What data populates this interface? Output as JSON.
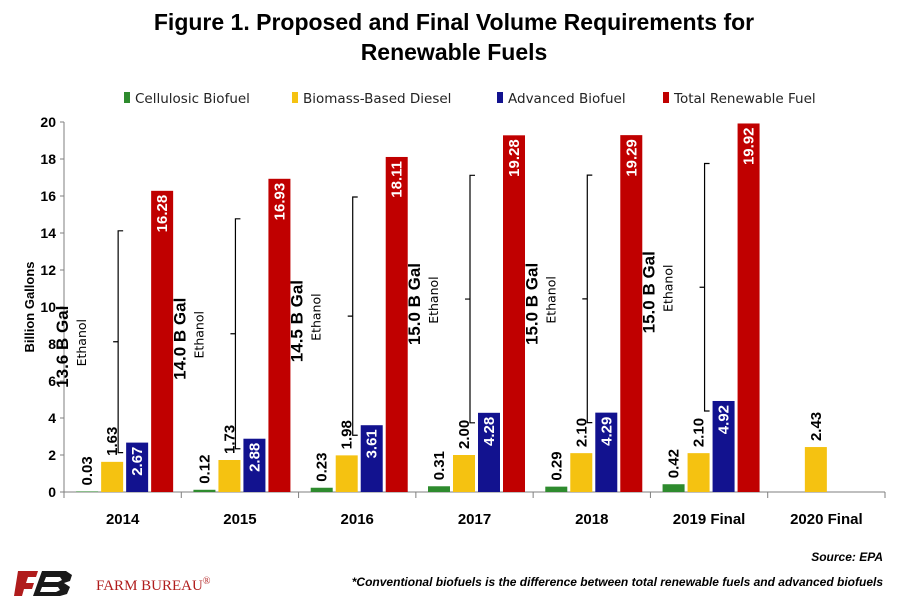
{
  "title_line1": "Figure 1. Proposed and Final Volume Requirements for",
  "title_line2": "Renewable Fuels",
  "source": "Source: EPA",
  "footnote": "*Conventional biofuels is the difference between total renewable fuels and advanced biofuels",
  "logo": {
    "text": "FARM BUREAU",
    "mark": "®",
    "color": "#b01c1c"
  },
  "chart_data": {
    "type": "bar",
    "title": "Figure 1. Proposed and Final Volume Requirements for Renewable Fuels",
    "ylabel": "Billion Gallons",
    "xlabel": "",
    "ylim": [
      0,
      20
    ],
    "yticks": [
      0,
      2,
      4,
      6,
      8,
      10,
      12,
      14,
      16,
      18,
      20
    ],
    "grid": false,
    "legend_position": "top",
    "categories": [
      "2014",
      "2015",
      "2016",
      "2017",
      "2018",
      "2019 Final",
      "2020 Final"
    ],
    "series": [
      {
        "name": "Cellulosic Biofuel",
        "color": "#2e8b2e",
        "label_color": "#000000",
        "values": [
          0.03,
          0.12,
          0.23,
          0.31,
          0.29,
          0.42,
          null
        ],
        "labels": [
          "0.03",
          "0.12",
          "0.23",
          "0.31",
          "0.29",
          "0.42",
          ""
        ]
      },
      {
        "name": "Biomass-Based Diesel",
        "color": "#f5c211",
        "label_color": "#000000",
        "values": [
          1.63,
          1.73,
          1.98,
          2.0,
          2.1,
          2.1,
          2.43
        ],
        "labels": [
          "1.63",
          "1.73",
          "1.98",
          "2.00",
          "2.10",
          "2.10",
          "2.43"
        ]
      },
      {
        "name": "Advanced Biofuel",
        "color": "#12128f",
        "label_color": "#ffffff",
        "values": [
          2.67,
          2.88,
          3.61,
          4.28,
          4.29,
          4.92,
          null
        ],
        "labels": [
          "2.67",
          "2.88",
          "3.61",
          "4.28",
          "4.29",
          "4.92",
          ""
        ]
      },
      {
        "name": "Total Renewable Fuel",
        "color": "#c00000",
        "label_color": "#ffffff",
        "values": [
          16.28,
          16.93,
          18.11,
          19.28,
          19.29,
          19.92,
          null
        ],
        "labels": [
          "16.28",
          "16.93",
          "18.11",
          "19.28",
          "19.29",
          "19.92",
          ""
        ]
      }
    ],
    "annotations": [
      {
        "category": "2014",
        "text": "13.6 B Gal",
        "subtext": "Ethanol"
      },
      {
        "category": "2015",
        "text": "14.0 B Gal",
        "subtext": "Ethanol"
      },
      {
        "category": "2016",
        "text": "14.5 B Gal",
        "subtext": "Ethanol"
      },
      {
        "category": "2017",
        "text": "15.0 B Gal",
        "subtext": "Ethanol"
      },
      {
        "category": "2018",
        "text": "15.0 B Gal",
        "subtext": "Ethanol"
      },
      {
        "category": "2019 Final",
        "text": "15.0 B Gal",
        "subtext": "Ethanol"
      }
    ]
  }
}
